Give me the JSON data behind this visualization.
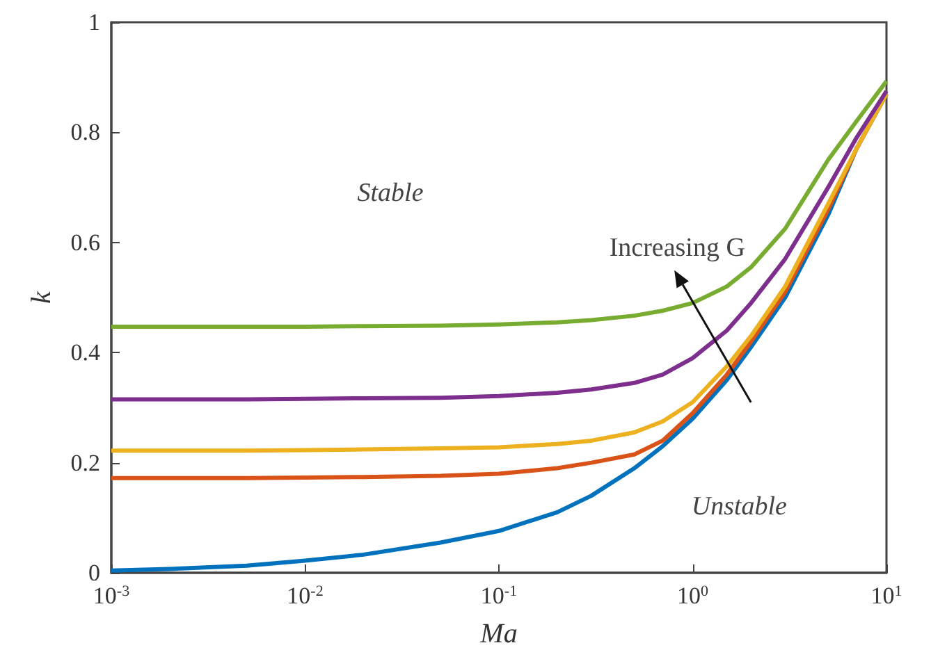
{
  "chart_data": {
    "type": "line",
    "xlabel": "Ma",
    "ylabel": "k",
    "log": "x",
    "grid": false,
    "marker": "none",
    "line_style": "solid",
    "x": [
      0.001,
      0.002,
      0.005,
      0.01,
      0.02,
      0.05,
      0.1,
      0.2,
      0.3,
      0.5,
      0.7,
      1,
      1.5,
      2,
      3,
      5,
      7,
      10
    ],
    "xlim": [
      0.001,
      10
    ],
    "xticks": [
      {
        "value": 0.001,
        "label": "10$^{-3}$"
      },
      {
        "value": 0.01,
        "label": "10$^{-2}$"
      },
      {
        "value": 0.1,
        "label": "10$^{-1}$"
      },
      {
        "value": 1,
        "label": "10$^{0}$"
      },
      {
        "value": 10,
        "label": "10$^{1}$"
      }
    ],
    "ylim": [
      0,
      1
    ],
    "yticks": [
      0,
      0.2,
      0.4,
      0.6,
      0.8,
      1
    ],
    "series": [
      {
        "color": "#0072bd",
        "values": [
          0.004,
          0.007,
          0.013,
          0.022,
          0.033,
          0.055,
          0.076,
          0.11,
          0.14,
          0.19,
          0.23,
          0.28,
          0.35,
          0.41,
          0.5,
          0.65,
          0.77,
          0.87
        ]
      },
      {
        "color": "#d95319",
        "values": [
          0.172,
          0.172,
          0.172,
          0.173,
          0.174,
          0.176,
          0.18,
          0.19,
          0.2,
          0.215,
          0.24,
          0.29,
          0.36,
          0.42,
          0.51,
          0.66,
          0.77,
          0.87
        ]
      },
      {
        "color": "#edb120",
        "values": [
          0.222,
          0.222,
          0.222,
          0.223,
          0.224,
          0.226,
          0.228,
          0.234,
          0.24,
          0.255,
          0.275,
          0.31,
          0.375,
          0.43,
          0.52,
          0.67,
          0.77,
          0.87
        ]
      },
      {
        "color": "#7e2f8e",
        "values": [
          0.315,
          0.315,
          0.315,
          0.316,
          0.317,
          0.318,
          0.321,
          0.327,
          0.333,
          0.345,
          0.36,
          0.39,
          0.44,
          0.49,
          0.57,
          0.7,
          0.79,
          0.875
        ]
      },
      {
        "color": "#77ac30",
        "values": [
          0.447,
          0.447,
          0.447,
          0.447,
          0.448,
          0.449,
          0.451,
          0.455,
          0.459,
          0.467,
          0.476,
          0.49,
          0.52,
          0.555,
          0.625,
          0.75,
          0.82,
          0.893
        ]
      }
    ],
    "annotations": [
      "Stable",
      "Increasing G",
      "Unstable"
    ]
  }
}
